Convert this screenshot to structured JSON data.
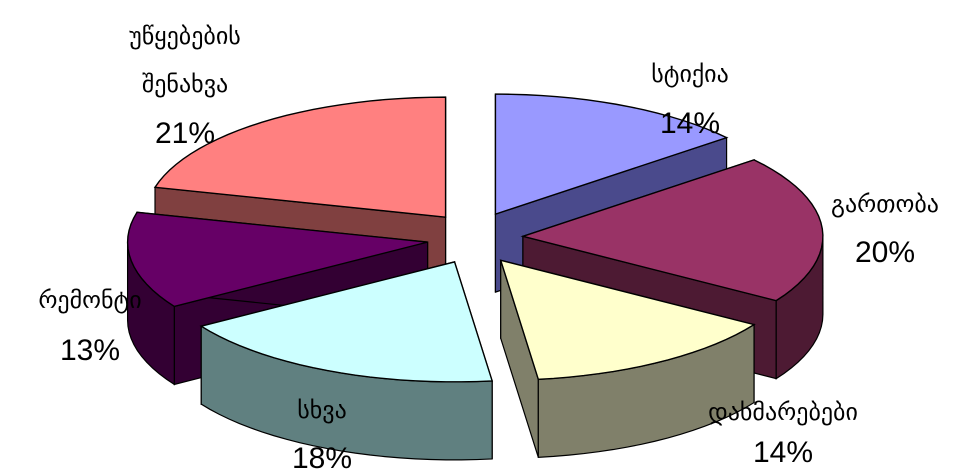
{
  "chart_data": {
    "type": "pie",
    "style": "exploded 3D pie",
    "slices": [
      {
        "label": "სტიქია",
        "value": 14,
        "value_label": "14%",
        "color": "#9999ff",
        "side_color": "#4a4a8c"
      },
      {
        "label": "გართობა",
        "value": 20,
        "value_label": "20%",
        "color": "#993366",
        "side_color": "#4d1a33"
      },
      {
        "label": "დახმარებები",
        "value": 14,
        "value_label": "14%",
        "color": "#ffffcc",
        "side_color": "#80806a"
      },
      {
        "label": "სხვა",
        "value": 18,
        "value_label": "18%",
        "color": "#ccffff",
        "side_color": "#608080"
      },
      {
        "label": "რემონტი",
        "value": 13,
        "value_label": "13%",
        "color": "#660066",
        "side_color": "#330033"
      },
      {
        "label": "უწყებების შენახვა",
        "label_lines": [
          "უწყებების",
          "შენახვა"
        ],
        "value": 21,
        "value_label": "21%",
        "color": "#ff8080",
        "side_color": "#804040"
      }
    ],
    "legend": "none",
    "title": ""
  }
}
